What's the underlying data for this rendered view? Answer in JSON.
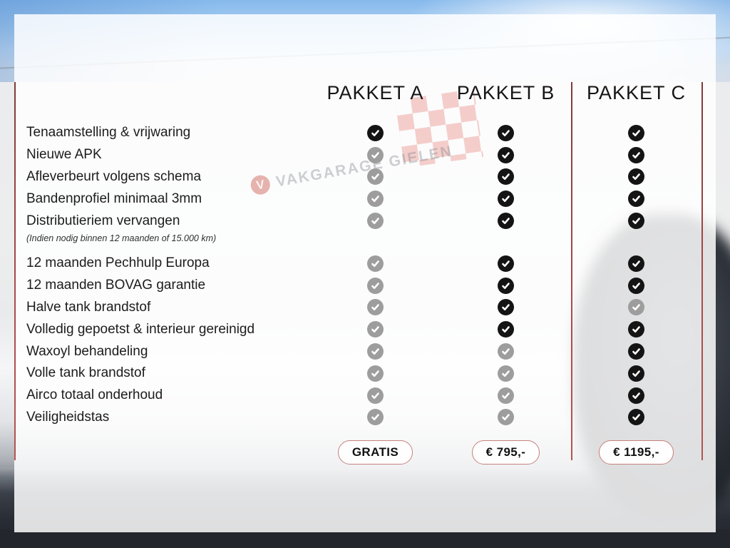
{
  "theme": {
    "divider_color": "#a04a48",
    "included_check_color": "#141414",
    "excluded_check_color": "#9d9d9d",
    "price_border_color": "#c4827e",
    "price_text_color": "#111111",
    "flag_color": "#e05546"
  },
  "watermark": {
    "logo_letter": "V",
    "brand_text": "VAKGARAGE GIELEN"
  },
  "columns": [
    {
      "id": "A",
      "label": "PAKKET A",
      "price": "GRATIS"
    },
    {
      "id": "B",
      "label": "PAKKET B",
      "price": "€ 795,-"
    },
    {
      "id": "C",
      "label": "PAKKET C",
      "price": "€ 1195,-"
    }
  ],
  "features": [
    {
      "label": "Tenaamstelling & vrijwaring",
      "included": [
        true,
        true,
        true
      ]
    },
    {
      "label": "Nieuwe APK",
      "included": [
        false,
        true,
        true
      ]
    },
    {
      "label": "Afleverbeurt volgens schema",
      "included": [
        false,
        true,
        true
      ]
    },
    {
      "label": "Bandenprofiel minimaal 3mm",
      "included": [
        false,
        true,
        true
      ]
    },
    {
      "label": "Distributieriem vervangen",
      "note": "(Indien nodig binnen 12 maanden of 15.000 km)",
      "included": [
        false,
        true,
        true
      ],
      "group_end": true
    },
    {
      "label": "12 maanden Pechhulp Europa",
      "included": [
        false,
        true,
        true
      ]
    },
    {
      "label": "12 maanden BOVAG garantie",
      "included": [
        false,
        true,
        true
      ]
    },
    {
      "label": "Halve tank brandstof",
      "included": [
        false,
        true,
        false
      ]
    },
    {
      "label": "Volledig gepoetst & interieur gereinigd",
      "included": [
        false,
        true,
        true
      ]
    },
    {
      "label": "Waxoyl behandeling",
      "included": [
        false,
        false,
        true
      ]
    },
    {
      "label": "Volle tank brandstof",
      "included": [
        false,
        false,
        true
      ]
    },
    {
      "label": "Airco totaal onderhoud",
      "included": [
        false,
        false,
        true
      ]
    },
    {
      "label": "Veiligheidstas",
      "included": [
        false,
        false,
        true
      ]
    }
  ]
}
